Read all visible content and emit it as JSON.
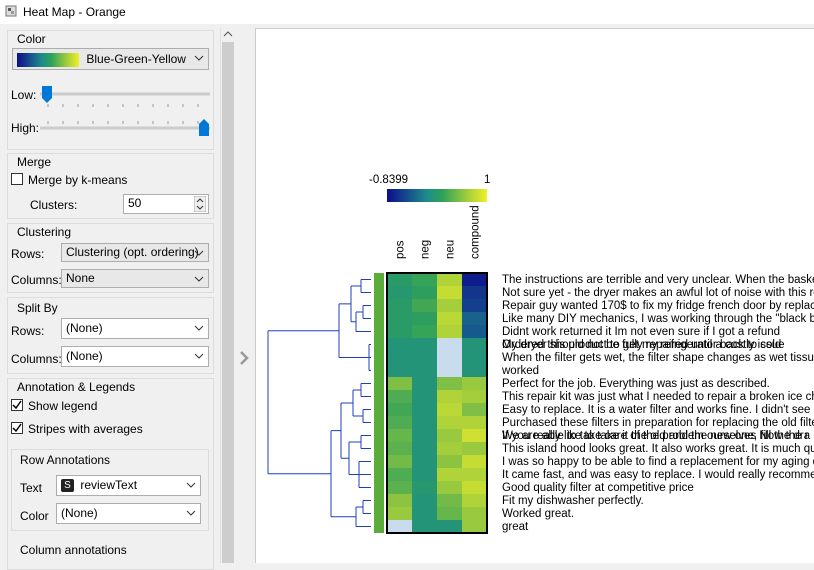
{
  "window_title": "Heat Map - Orange",
  "color": {
    "title": "Color",
    "palette": "Blue-Green-Yellow",
    "low": "Low:",
    "high": "High:"
  },
  "merge": {
    "title": "Merge",
    "checkbox": "Merge by k-means",
    "clusters_label": "Clusters:",
    "clusters": "50"
  },
  "clustering": {
    "title": "Clustering",
    "rows_label": "Rows:",
    "rows": "Clustering (opt. ordering)",
    "columns_label": "Columns:",
    "columns": "None"
  },
  "split_by": {
    "title": "Split By",
    "rows_label": "Rows:",
    "rows": "(None)",
    "columns_label": "Columns:",
    "columns": "(None)"
  },
  "annotation": {
    "title": "Annotation & Legends",
    "show_legend": "Show legend",
    "stripes": "Stripes with averages",
    "row_annotations": "Row Annotations",
    "text_label": "Text",
    "text_icon": "S",
    "text": "reviewText",
    "color_label": "Color",
    "color": "(None)",
    "column_annotations": "Column annotations"
  },
  "heatmap": {
    "vmin": -0.8399,
    "vmax": 1,
    "columns": [
      "pos",
      "neg",
      "neu",
      "compound"
    ],
    "rows": [
      {
        "labels": [
          "The instructions are terrible and very unclear.  When the baske"
        ],
        "values": [
          0.1,
          0.2,
          0.7,
          -0.75
        ]
      },
      {
        "labels": [
          "Not sure yet - the dryer makes an awful lot of noise with this ro"
        ],
        "values": [
          0.05,
          0.15,
          0.8,
          -0.6
        ]
      },
      {
        "labels": [
          "Repair guy wanted 170$ to fix my fridge french door by replac"
        ],
        "values": [
          0.1,
          0.25,
          0.65,
          -0.55
        ]
      },
      {
        "labels": [
          "Like many DIY mechanics, I was working through the \"black box"
        ],
        "values": [
          0.1,
          0.15,
          0.75,
          -0.35
        ]
      },
      {
        "labels": [
          "Didnt work returned it Im not even sure if I got a refund"
        ],
        "values": [
          0.1,
          0.2,
          0.7,
          -0.4
        ]
      },
      {
        "labels": [
          "Ordered this product to get my refrigerator back to cold",
          "My dryer should not be fully repaired until a costly issue"
        ],
        "values": [
          0,
          0,
          null,
          0
        ]
      },
      {
        "labels": [
          "When the filter gets wet, the filter shape changes as wet tissu"
        ],
        "values": [
          0,
          0,
          null,
          0
        ]
      },
      {
        "labels": [
          "worked"
        ],
        "values": [
          0,
          0,
          null,
          0
        ]
      },
      {
        "labels": [
          "Perfect for the job.  Everything was just as described."
        ],
        "values": [
          0.5,
          0,
          0.5,
          0.6
        ]
      },
      {
        "labels": [
          "This repair kit was just  what I needed to repair a broken ice ch"
        ],
        "values": [
          0.3,
          0,
          0.7,
          0.65
        ]
      },
      {
        "labels": [
          "Easy to replace. It is a water filter and works fine. I didn't see"
        ],
        "values": [
          0.25,
          0,
          0.75,
          0.5
        ]
      },
      {
        "labels": [
          "Purchased these filters in preparation for replacing the old filte"
        ],
        "values": [
          0.3,
          0,
          0.7,
          0.7
        ]
      },
      {
        "labels": [
          "If you really like to take it the old and the new one, fill the dra",
          "We are able to take care of the problem ourselves Now the r"
        ],
        "values": [
          0.4,
          0,
          0.6,
          0.85
        ]
      },
      {
        "labels": [
          "This island hood looks great.  It also works great.  It is much qu"
        ],
        "values": [
          0.35,
          0,
          0.65,
          0.6
        ]
      },
      {
        "labels": [
          "I was so happy to be able to find a replacement for my aging d"
        ],
        "values": [
          0.45,
          0,
          0.55,
          0.8
        ]
      },
      {
        "labels": [
          "It came fast, and was easy to replace. I would really recommen"
        ],
        "values": [
          0.3,
          0,
          0.7,
          0.7
        ]
      },
      {
        "labels": [
          "Good quality filter at competitive price"
        ],
        "values": [
          0.35,
          0.05,
          0.6,
          0.8
        ]
      },
      {
        "labels": [
          "Fit my dishwasher perfectly."
        ],
        "values": [
          0.55,
          0,
          0.45,
          0.7
        ]
      },
      {
        "labels": [
          "Worked great."
        ],
        "values": [
          0.6,
          0,
          0.4,
          0.6
        ]
      },
      {
        "labels": [
          "great"
        ],
        "values": [
          null,
          0,
          0,
          0.6
        ]
      }
    ]
  }
}
